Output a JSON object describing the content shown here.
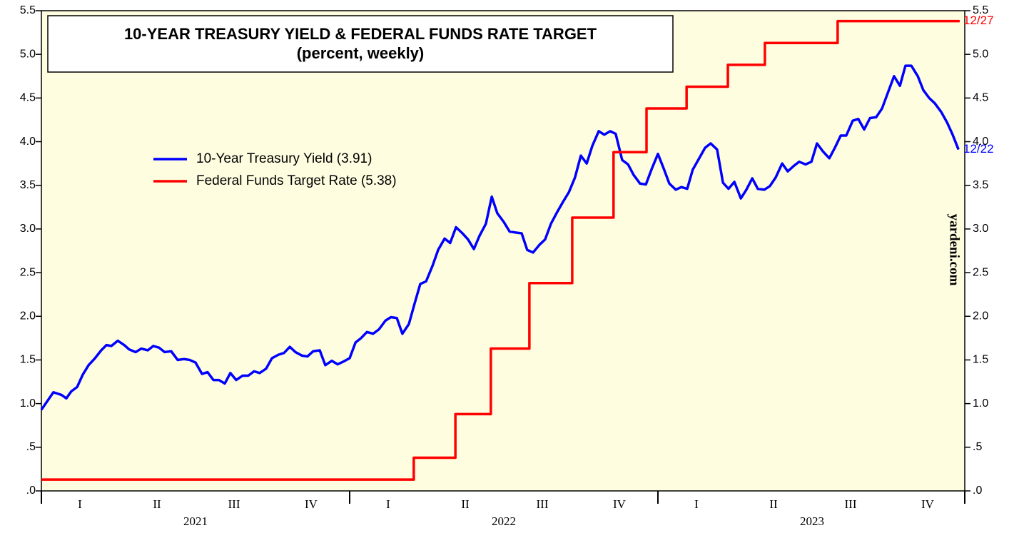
{
  "chart_data": {
    "type": "line",
    "title": "10-YEAR TREASURY YIELD & FEDERAL FUNDS RATE TARGET",
    "subtitle": "(percent, weekly)",
    "watermark": "yardeni.com",
    "xlim": [
      2021,
      2024
    ],
    "xticks": [
      2021,
      2022,
      2023,
      2024
    ],
    "quarter_labels": [
      {
        "value": 2021.125,
        "label": "I"
      },
      {
        "value": 2021.375,
        "label": "II"
      },
      {
        "value": 2021.625,
        "label": "III"
      },
      {
        "value": 2021.875,
        "label": "IV"
      },
      {
        "value": 2022.125,
        "label": "I"
      },
      {
        "value": 2022.375,
        "label": "II"
      },
      {
        "value": 2022.625,
        "label": "III"
      },
      {
        "value": 2022.875,
        "label": "IV"
      },
      {
        "value": 2023.125,
        "label": "I"
      },
      {
        "value": 2023.375,
        "label": "II"
      },
      {
        "value": 2023.625,
        "label": "III"
      },
      {
        "value": 2023.875,
        "label": "IV"
      }
    ],
    "year_labels": [
      {
        "value": 2021.5,
        "label": "2021"
      },
      {
        "value": 2022.5,
        "label": "2022"
      },
      {
        "value": 2023.5,
        "label": "2023"
      }
    ],
    "ylim": [
      0,
      5.5
    ],
    "yticks": [
      {
        "value": 0,
        "label": ".0"
      },
      {
        "value": 0.5,
        "label": ".5"
      },
      {
        "value": 1,
        "label": "1.0"
      },
      {
        "value": 1.5,
        "label": "1.5"
      },
      {
        "value": 2,
        "label": "2.0"
      },
      {
        "value": 2.5,
        "label": "2.5"
      },
      {
        "value": 3,
        "label": "3.0"
      },
      {
        "value": 3.5,
        "label": "3.5"
      },
      {
        "value": 4,
        "label": "4.0"
      },
      {
        "value": 4.5,
        "label": "4.5"
      },
      {
        "value": 5,
        "label": "5.0"
      },
      {
        "value": 5.5,
        "label": "5.5"
      }
    ],
    "y2lim": [
      0,
      5.5
    ],
    "y2ticks": [
      {
        "value": 0,
        "label": ".0"
      },
      {
        "value": 0.5,
        "label": ".5"
      },
      {
        "value": 1,
        "label": "1.0"
      },
      {
        "value": 1.5,
        "label": "1.5"
      },
      {
        "value": 2,
        "label": "2.0"
      },
      {
        "value": 2.5,
        "label": "2.5"
      },
      {
        "value": 3,
        "label": "3.0"
      },
      {
        "value": 3.5,
        "label": "3.5"
      },
      {
        "value": 4,
        "label": "4.0"
      },
      {
        "value": 4.5,
        "label": "4.5"
      },
      {
        "value": 5,
        "label": "5.0"
      },
      {
        "value": 5.5,
        "label": "5.5"
      }
    ],
    "legend": "upper left",
    "series": [
      {
        "name": "10-Year Treasury Yield (3.91)",
        "color": "#0000ff",
        "end_label": "12/22",
        "x": [
          2021,
          2021.039,
          2021.065,
          2021.081,
          2021.097,
          2021.116,
          2021.134,
          2021.153,
          2021.174,
          2021.194,
          2021.211,
          2021.227,
          2021.248,
          2021.269,
          2021.285,
          2021.306,
          2021.324,
          2021.345,
          2021.363,
          2021.382,
          2021.4,
          2021.421,
          2021.442,
          2021.463,
          2021.481,
          2021.5,
          2021.521,
          2021.539,
          2021.558,
          2021.576,
          2021.595,
          2021.613,
          2021.632,
          2021.653,
          2021.671,
          2021.69,
          2021.708,
          2021.729,
          2021.748,
          2021.769,
          2021.787,
          2021.806,
          2021.824,
          2021.845,
          2021.863,
          2021.882,
          2021.903,
          2021.921,
          2021.942,
          2021.961,
          2021.979,
          2022,
          2022.019,
          2022.037,
          2022.056,
          2022.076,
          2022.095,
          2022.116,
          2022.134,
          2022.153,
          2022.171,
          2022.192,
          2022.211,
          2022.229,
          2022.248,
          2022.269,
          2022.287,
          2022.308,
          2022.326,
          2022.345,
          2022.366,
          2022.384,
          2022.403,
          2022.421,
          2022.442,
          2022.461,
          2022.479,
          2022.5,
          2022.519,
          2022.537,
          2022.558,
          2022.576,
          2022.595,
          2022.616,
          2022.634,
          2022.653,
          2022.671,
          2022.692,
          2022.711,
          2022.731,
          2022.75,
          2022.769,
          2022.787,
          2022.808,
          2022.826,
          2022.845,
          2022.863,
          2022.884,
          2022.903,
          2022.921,
          2022.942,
          2022.961,
          2022.979,
          2023,
          2023.019,
          2023.037,
          2023.058,
          2023.076,
          2023.095,
          2023.113,
          2023.134,
          2023.153,
          2023.171,
          2023.192,
          2023.211,
          2023.229,
          2023.248,
          2023.269,
          2023.287,
          2023.306,
          2023.324,
          2023.345,
          2023.363,
          2023.382,
          2023.403,
          2023.421,
          2023.44,
          2023.458,
          2023.479,
          2023.498,
          2023.516,
          2023.535,
          2023.556,
          2023.574,
          2023.593,
          2023.611,
          2023.632,
          2023.65,
          2023.669,
          2023.688,
          2023.708,
          2023.727,
          2023.748,
          2023.766,
          2023.785,
          2023.803,
          2023.822,
          2023.843,
          2023.861,
          2023.88,
          2023.898,
          2023.919,
          2023.938,
          2023.956,
          2023.975
        ],
        "values": [
          0.93,
          1.13,
          1.1,
          1.06,
          1.14,
          1.19,
          1.33,
          1.44,
          1.52,
          1.61,
          1.67,
          1.66,
          1.72,
          1.67,
          1.62,
          1.59,
          1.63,
          1.61,
          1.66,
          1.64,
          1.59,
          1.6,
          1.5,
          1.51,
          1.5,
          1.47,
          1.34,
          1.36,
          1.27,
          1.27,
          1.23,
          1.35,
          1.27,
          1.32,
          1.32,
          1.37,
          1.35,
          1.4,
          1.52,
          1.56,
          1.58,
          1.65,
          1.59,
          1.55,
          1.54,
          1.6,
          1.61,
          1.44,
          1.49,
          1.45,
          1.48,
          1.52,
          1.7,
          1.75,
          1.82,
          1.8,
          1.85,
          1.95,
          1.99,
          1.98,
          1.8,
          1.91,
          2.15,
          2.37,
          2.4,
          2.58,
          2.76,
          2.89,
          2.84,
          3.02,
          2.95,
          2.88,
          2.77,
          2.92,
          3.06,
          3.37,
          3.18,
          3.08,
          2.97,
          2.96,
          2.95,
          2.76,
          2.73,
          2.82,
          2.88,
          3.06,
          3.18,
          3.31,
          3.42,
          3.59,
          3.84,
          3.75,
          3.95,
          4.12,
          4.08,
          4.12,
          4.09,
          3.79,
          3.74,
          3.62,
          3.52,
          3.51,
          3.68,
          3.86,
          3.69,
          3.52,
          3.45,
          3.48,
          3.46,
          3.68,
          3.81,
          3.93,
          3.98,
          3.91,
          3.53,
          3.46,
          3.54,
          3.35,
          3.45,
          3.58,
          3.46,
          3.45,
          3.49,
          3.59,
          3.75,
          3.66,
          3.72,
          3.77,
          3.74,
          3.77,
          3.98,
          3.89,
          3.81,
          3.93,
          4.07,
          4.07,
          4.24,
          4.26,
          4.14,
          4.27,
          4.28,
          4.38,
          4.58,
          4.75,
          4.64,
          4.87,
          4.87,
          4.75,
          4.59,
          4.5,
          4.44,
          4.34,
          4.22,
          4.08,
          3.91
        ]
      },
      {
        "name": "Federal Funds Target Rate (5.38)",
        "color": "#ff0000",
        "end_label": "12/27",
        "step": true,
        "x": [
          2021,
          2022.208,
          2022.343,
          2022.458,
          2022.583,
          2022.722,
          2022.856,
          2022.963,
          2023.093,
          2023.227,
          2023.347,
          2023.583,
          2023.979
        ],
        "values": [
          0.13,
          0.38,
          0.88,
          1.63,
          2.38,
          3.13,
          3.88,
          4.38,
          4.63,
          4.88,
          5.13,
          5.38,
          5.38
        ]
      }
    ]
  }
}
